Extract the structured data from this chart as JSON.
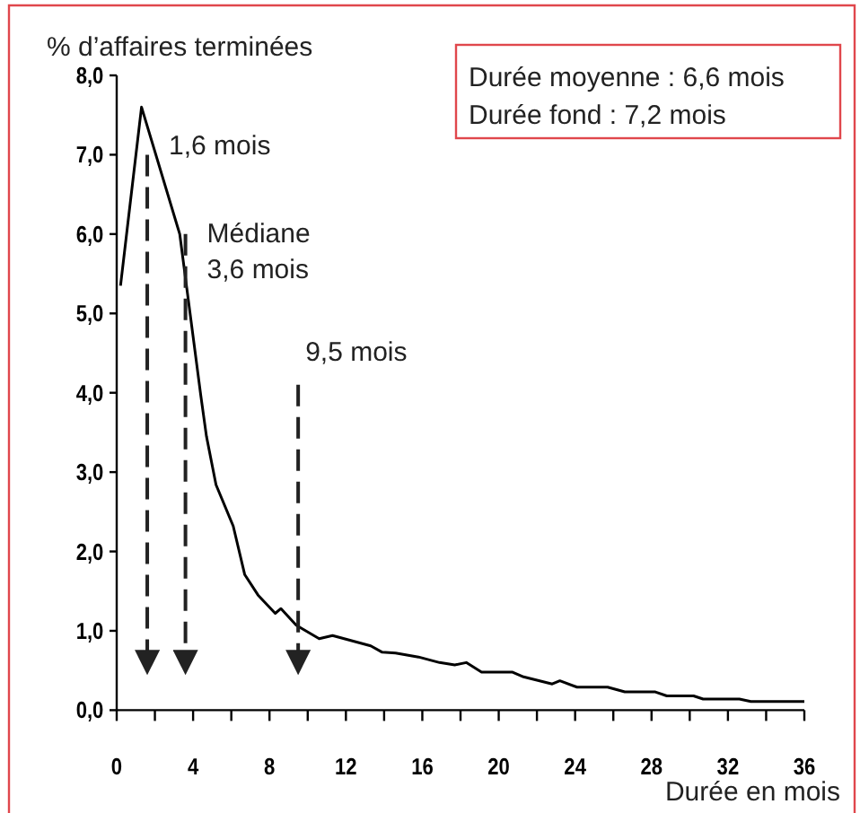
{
  "chart_data": {
    "type": "line",
    "ylabel": "%  d’affaires terminées",
    "xlabel": "Durée en mois",
    "x": [
      0.2,
      1.3,
      3.3,
      4.4,
      4.7,
      5.2,
      6.1,
      6.7,
      7.4,
      8.3,
      8.6,
      9.4,
      10.6,
      11.3,
      13.3,
      13.9,
      14.6,
      15.8,
      16.9,
      17.7,
      18.3,
      19.1,
      20.7,
      21.3,
      22.8,
      23.2,
      24.1,
      25.7,
      26.6,
      28.2,
      28.8,
      30.2,
      30.7,
      32.6,
      33.2,
      36
    ],
    "series": [
      {
        "color": "#000000",
        "values": [
          5.35,
          7.6,
          6.0,
          3.97,
          3.45,
          2.84,
          2.32,
          1.71,
          1.45,
          1.22,
          1.28,
          1.07,
          0.9,
          0.94,
          0.81,
          0.73,
          0.72,
          0.67,
          0.6,
          0.57,
          0.6,
          0.48,
          0.48,
          0.42,
          0.33,
          0.37,
          0.29,
          0.29,
          0.23,
          0.23,
          0.18,
          0.18,
          0.14,
          0.14,
          0.11,
          0.11
        ]
      }
    ],
    "xlim": [
      0,
      36
    ],
    "xticks": [
      0,
      {
        "value": 2,
        "label": null
      },
      4,
      {
        "value": 6,
        "label": null
      },
      8,
      {
        "value": 10,
        "label": null
      },
      12,
      {
        "value": 14,
        "label": null
      },
      16,
      {
        "value": 18,
        "label": null
      },
      20,
      {
        "value": 22,
        "label": null
      },
      24,
      {
        "value": 26,
        "label": null
      },
      28,
      {
        "value": 30,
        "label": null
      },
      32,
      {
        "value": 34,
        "label": null
      },
      36
    ],
    "ylim": [
      0,
      8
    ],
    "yticks": [
      {
        "value": 0,
        "label": "0,0"
      },
      {
        "value": 1,
        "label": "1,0"
      },
      {
        "value": 2,
        "label": "2,0"
      },
      {
        "value": 3,
        "label": "3,0"
      },
      {
        "value": 4,
        "label": "4,0"
      },
      {
        "value": 5,
        "label": "5,0"
      },
      {
        "value": 6,
        "label": "6,0"
      },
      {
        "value": 7,
        "label": "7,0"
      },
      {
        "value": 8,
        "label": "8,0"
      }
    ],
    "ref_lines": [
      {
        "axis": "x",
        "value": 1.6,
        "label": "1,6 mois",
        "line_style": "dashed"
      },
      {
        "axis": "x",
        "value": 3.6,
        "label": "Médiane\n3,6 mois",
        "line_style": "dashed"
      },
      {
        "axis": "x",
        "value": 9.5,
        "label": "9,5 mois",
        "line_style": "dashed"
      }
    ],
    "annotations": [
      "Durée moyenne : 6,6 mois",
      "Durée fond : 7,2 mois"
    ],
    "marker": "none",
    "line_style": "solid"
  }
}
